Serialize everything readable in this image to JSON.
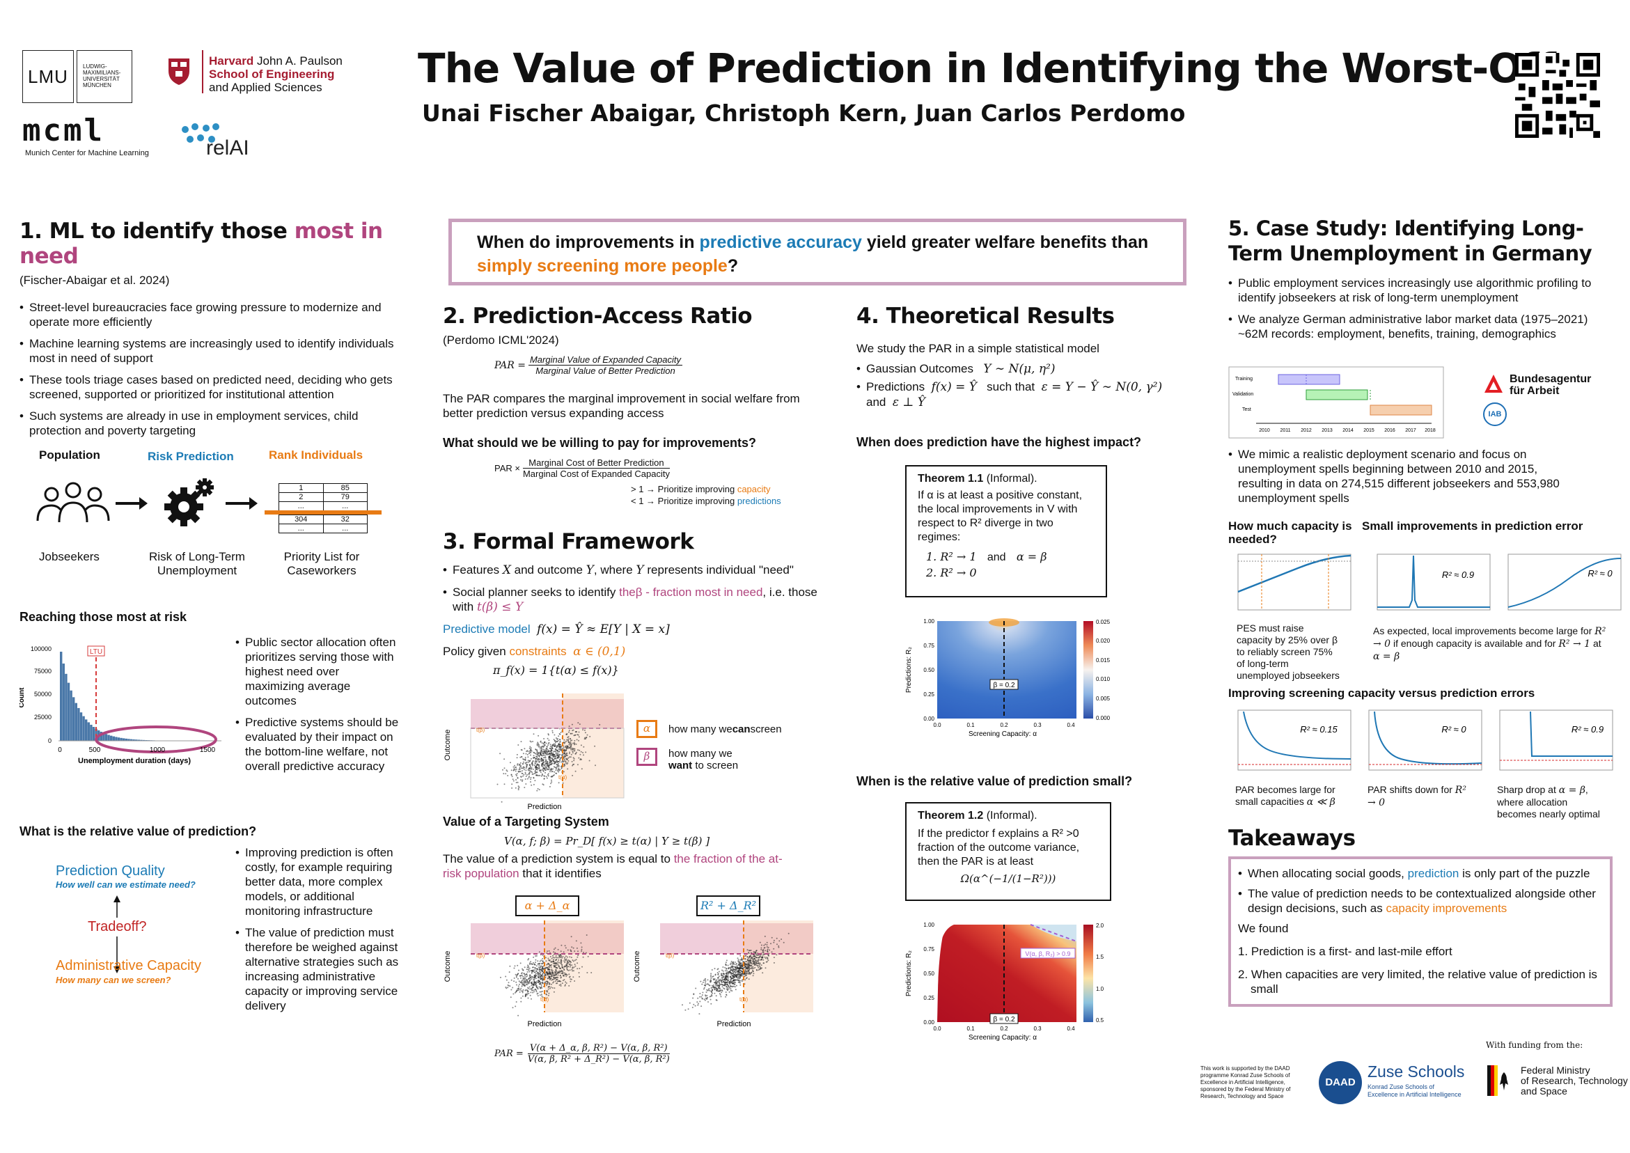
{
  "header": {
    "title": "The Value of Prediction in Identifying the Worst-Off",
    "authors": "Unai Fischer Abaigar, Christoph Kern, Juan Carlos Perdomo",
    "lmu": "LMU",
    "lmu_name": [
      "LUDWIG-",
      "MAXIMILIANS-",
      "UNIVERSITÄT",
      "MÜNCHEN"
    ],
    "harvard_1": "Harvard",
    "harvard_1b": "John A. Paulson",
    "harvard_2": "School of Engineering",
    "harvard_3": "and Applied Sciences",
    "mcml": "mcml",
    "mcml_sub": "Munich Center for Machine Learning",
    "relai": "relAI"
  },
  "s1": {
    "title_a": "1.  ML to identify those ",
    "title_b": "most in need",
    "cite": "(Fischer-Abaigar et al. 2024)",
    "bullets": [
      "Street-level bureaucracies face growing pressure to modernize and operate more efficiently",
      "Machine learning systems are increasingly used to identify individuals most in need of support",
      "These tools triage cases based on predicted need, deciding who gets screened, supported or prioritized for institutional attention",
      "Such systems are already in use in employment services, child protection and poverty targeting"
    ],
    "pipe_pop": "Population",
    "pipe_risk": "Risk Prediction",
    "pipe_rank": "Rank Individuals",
    "pipe_job": "Jobseekers",
    "pipe_riskdesc": "Risk of Long-Term Unemployment",
    "pipe_list": "Priority List for Caseworkers",
    "table": [
      [
        "1",
        "85"
      ],
      [
        "2",
        "79"
      ],
      [
        "...",
        "..."
      ],
      [
        "304",
        "32"
      ],
      [
        "...",
        "..."
      ]
    ],
    "reach_title": "Reaching those most at risk",
    "reach_bullets": [
      "Public sector allocation often prioritizes serving those with highest need over maximizing average outcomes",
      "Predictive systems should be evaluated by their impact on the bottom-line welfare, not overall predictive accuracy"
    ],
    "hist_ltu": "LTU",
    "hist_xlabel": "Unemployment duration (days)",
    "hist_ylabel": "Count",
    "hist_yticks": [
      "100000",
      "75000",
      "50000",
      "25000",
      "0"
    ],
    "hist_xticks": [
      "0",
      "500",
      "1000",
      "1500"
    ],
    "rel_title": "What is the relative value of prediction?",
    "pq": "Prediction Quality",
    "pq_sub": "How well can we estimate need?",
    "tradeoff": "Tradeoff?",
    "ac": "Administrative Capacity",
    "ac_sub": "How many can we screen?",
    "rel_bullets": [
      "Improving prediction is often costly, for example requiring better data, more complex models, or additional monitoring infrastructure",
      "The value of prediction must therefore be weighed against alternative strategies such as increasing administrative capacity or improving service delivery"
    ]
  },
  "q": {
    "a": "When do improvements in ",
    "b": "predictive accuracy ",
    "c": " yield greater welfare benefits than ",
    "d": "simply screening more people",
    "e": "?"
  },
  "s2": {
    "title": "2. Prediction-Access Ratio",
    "cite": "(Perdomo ICML'2024)",
    "par": "PAR =",
    "num": "Marginal Value of Expanded Capacity",
    "den": "Marginal Value of Better Prediction",
    "desc": "The PAR compares the marginal improvement in social welfare from better prediction versus expanding access",
    "q": "What should we be willing to pay for improvements?",
    "par2": "PAR ×",
    "num2": "Marginal Cost of Better Prediction",
    "den2": "Marginal Cost of Expanded Capacity",
    "gt": "> 1 → Prioritize improving ",
    "gt_b": "capacity",
    "lt": "< 1 → Prioritize improving ",
    "lt_b": "predictions"
  },
  "s3": {
    "title": "3. Formal Framework",
    "b1a": "Features ",
    "b1x": "X",
    "b1b": " and outcome ",
    "b1y": "Y",
    "b1c": ", where ",
    "b1y2": "Y",
    "b1d": " represents individual \"need\"",
    "b2a": "Social planner seeks to identify ",
    "b2b": "theβ - fraction most in need",
    ", i.e.": "",
    "b2c": ", i.e. those with ",
    "b2m": "t(β) ≤ Y",
    "pm": "Predictive model",
    "pm_m": "f(x) = Ŷ ≈ E[Y | X = x]",
    "pol": "Policy given ",
    "pol_b": "constraints",
    "pol_m": "α ∈ (0,1)",
    "pi": "π_f(x) = 1{t(α) ≤ f(x)}",
    "alpha_desc_a": "how many we ",
    "alpha_desc_b": "can",
    "alpha_desc_c": " screen",
    "beta_desc_a": "how many we ",
    "beta_desc_b": "want",
    "beta_desc_c": " to screen",
    "scatter_x": "Prediction",
    "scatter_y": "Outcome",
    "t_alpha": "t(α)",
    "t_beta": "t(β)",
    "vts": "Value of a Targeting System",
    "v": "V(α, f; β) = Pr_D[ f(x) ≥ t(α) | Y ≥ t(β) ]",
    "vdesc_a": "The value of a prediction system is equal to ",
    "vdesc_b": "the fraction of the at-risk population",
    " vdesc_c": "",
    "vdesc_c": " that it identifies",
    "d_alpha": "α + Δ_α",
    "d_r2": "R² + Δ_R²",
    "par_num": "V(α + Δ_α, β, R²) − V(α, β, R²)",
    "par_den": "V(α, β, R² + Δ_R²) − V(α, β, R²)",
    "par_lhs": "PAR ="
  },
  "s4": {
    "title": "4. Theoretical Results",
    "intro": "We study the PAR in a simple statistical model",
    "b1": "Gaussian Outcomes",
    "b1m": "Y ∼ N(μ, η²)",
    "b2": "Predictions",
    "b2m": "f(x) = Ŷ",
    "b2c": "such that",
    "b2m2": "ε = Y − Ŷ ∼ N(0, γ²)",
    "b2d": "and",
    "b2m3": "ε ⊥ Ŷ",
    "q1": "When does prediction have the highest impact?",
    "th1": "Theorem 1.1",
    "th1i": " (Informal).",
    "th1_text": "If α is at least a positive constant, the local improvements in V with respect to R² diverge in two regimes:",
    "th1_l1": "1.  R² → 1",
    "th1_and": "and",
    "th1_l1b": "α = β",
    "th1_l2": "2.  R² → 0",
    "hm1_ylabel": "Predictions: R₂",
    "hm1_xlabel": "Screening Capacity: α",
    "hm1_beta": "β = 0.2",
    "hm1_cb": [
      "0.025",
      "0.020",
      "0.015",
      "0.010",
      "0.005",
      "0.000"
    ],
    "hm_yticks": [
      "1.00",
      "0.75",
      "0.50",
      "0.25",
      "0.00"
    ],
    "hm_xticks": [
      "0.0",
      "0.1",
      "0.2",
      "0.3",
      "0.4"
    ],
    "q2": "When is the relative value of prediction small?",
    "th2": "Theorem 1.2",
    "th2i": " (Informal).",
    "th2_text": "If the predictor f explains a R² >0 fraction of the outcome variance, then the PAR is at least",
    "th2_m": "Ω(α^(−1/(1−R²)))",
    "hm2_label": "V(α, β, R₂) > 0.9",
    "hm2_cb": [
      "2.0",
      "1.5",
      "1.0",
      "0.5"
    ]
  },
  "s5": {
    "title": "5. Case Study: Identifying Long-Term Unemployment in Germany",
    "bullets": [
      "Public employment services increasingly use algorithmic profiling to identify jobseekers at risk of long-term unemployment",
      "We analyze German administrative labor market data (1975–2021) ~62M records: employment, benefits, training, demographics"
    ],
    "gantt_rows": [
      "Training",
      "Validation",
      "Test"
    ],
    "gantt_years": [
      "2010",
      "2011",
      "2012",
      "2013",
      "2014",
      "2015",
      "2016",
      "2017",
      "2018"
    ],
    "ba1": "Bundesagentur",
    "ba2": "für Arbeit",
    "iab": "IAB",
    "bullet3": "We mimic a realistic deployment scenario and focus on unemployment spells beginning between 2010 and 2015, resulting in data on 274,515 different jobseekers and 553,980 unemployment spells",
    "h_cap": "How much capacity is needed?",
    "h_small": "Small improvements in prediction error",
    "cap_desc": "PES must raise capacity by 25% over β to reliably screen 75% of long-term unemployed jobseekers",
    "small_desc_a": "As expected, local improvements become large for ",
    "small_m1": "R² → 0",
    "small_desc_b": " if enough capacity is available and for ",
    "small_m2": "R² → 1",
    "small_desc_c": " at ",
    "small_m3": "α = β",
    "r2_09": "R² ≈ 0.9",
    "r2_0": "R² ≈ 0",
    "r2_015": "R² ≈ 0.15",
    "h_improve": "Improving screening capacity versus prediction errors",
    "p1_a": "PAR becomes large for small capacities ",
    "p1_m": "α ≪ β",
    "p2_a": "PAR shifts down for ",
    "p2_m": "R² → 0",
    "p3_a": "Sharp drop at ",
    "p3_m": "α = β",
    ", where allocation becomes nearly optimal": "",
    "p3_b": ", where allocation becomes nearly optimal",
    "takeaways": "Takeaways",
    "t1a": "When allocating social goods, ",
    "t1b": "prediction",
    "t1c": " is only part of the puzzle",
    "t2a": "The value of prediction needs to be contextualized alongside other design decisions, such as ",
    "t2b": "capacity improvements",
    "found": "We found",
    "f1": "1.  Prediction is a first- and last-mile effort",
    "f2": "2.  When capacities are very limited, the relative value of prediction is small"
  },
  "footer": {
    "support": "This work is supported by the DAAD programme Konrad Zuse Schools of Excellence in Artificial Intelligence, sponsored by the Federal Ministry of Research, Technology and Space",
    "daad": "DAAD",
    "zuse": "Zuse Schools",
    "zuse_sub": "Konrad Zuse Schools of Excellence in Artificial Intelligence",
    "funding": "With funding from the:",
    "bmf": [
      "Federal Ministry",
      "of Research, Technology",
      "and Space"
    ]
  },
  "colors": {
    "blue": "#1c7bb5",
    "orange": "#e87b14",
    "pink": "#b0457e",
    "red": "#c12525"
  }
}
